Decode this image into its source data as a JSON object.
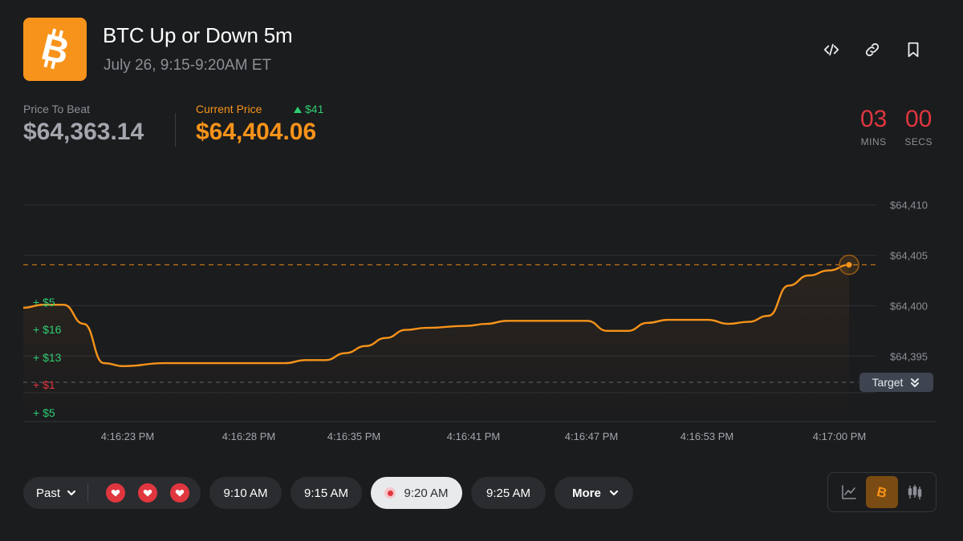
{
  "header": {
    "title": "BTC Up or Down 5m",
    "subtitle": "July 26, 9:15-9:20AM ET",
    "logo_icon": "bitcoin-icon",
    "brand_color": "#f7931a",
    "actions": [
      {
        "icon": "code-embed-icon"
      },
      {
        "icon": "link-icon"
      },
      {
        "icon": "bookmark-icon"
      }
    ]
  },
  "prices": {
    "beat_label": "Price To Beat",
    "beat_value": "$64,363.14",
    "current_label": "Current Price",
    "current_value": "$64,404.06",
    "delta": "$41",
    "delta_direction": "up",
    "up_color": "#2ecc71"
  },
  "timer": {
    "mins": "03",
    "mins_label": "MINS",
    "secs": "00",
    "secs_label": "SECS",
    "color": "#e0363f"
  },
  "target_badge": {
    "label": "Target"
  },
  "chart_data": {
    "type": "line",
    "x_ticks": [
      "4:16:23 PM",
      "4:16:28 PM",
      "4:16:35 PM",
      "4:16:41 PM",
      "4:16:47 PM",
      "4:16:53 PM",
      "4:17:00 PM"
    ],
    "y_ticks": [
      "$64,410",
      "$64,405",
      "$64,400",
      "$64,395"
    ],
    "y_ticks_values": [
      64410,
      64405,
      64400,
      64395
    ],
    "ylim": [
      64388.5,
      64413
    ],
    "current_price": 64404.06,
    "target_price": 64363.14,
    "line_color": "#f7931a",
    "grid": true,
    "trade_marks": [
      {
        "label": "+ $5",
        "side": "up"
      },
      {
        "label": "+ $16",
        "side": "up"
      },
      {
        "label": "+ $13",
        "side": "up"
      },
      {
        "label": "+ $1",
        "side": "down"
      },
      {
        "label": "+ $5",
        "side": "up"
      }
    ],
    "series": [
      {
        "x": [
          "4:16:19",
          "4:16:20",
          "4:16:21",
          "4:16:22",
          "4:16:23",
          "4:16:24",
          "4:16:26",
          "4:16:28",
          "4:16:30",
          "4:16:32",
          "4:16:33",
          "4:16:34",
          "4:16:35",
          "4:16:36",
          "4:16:37",
          "4:16:38",
          "4:16:39",
          "4:16:41",
          "4:16:42",
          "4:16:43",
          "4:16:44",
          "4:16:46",
          "4:16:47",
          "4:16:48",
          "4:16:49",
          "4:16:50",
          "4:16:51",
          "4:16:53",
          "4:16:54",
          "4:16:55",
          "4:16:56",
          "4:16:57",
          "4:16:58",
          "4:16:59",
          "4:17:00"
        ],
        "y": [
          64399.8,
          64400.1,
          64400.1,
          64398.2,
          64394.3,
          64394.0,
          64394.3,
          64394.3,
          64394.3,
          64394.3,
          64394.6,
          64394.6,
          64395.3,
          64396.0,
          64396.8,
          64397.6,
          64397.8,
          64398.0,
          64398.2,
          64398.5,
          64398.5,
          64398.5,
          64398.5,
          64397.5,
          64397.5,
          64398.3,
          64398.6,
          64398.6,
          64398.2,
          64398.4,
          64399.0,
          64402.0,
          64403.0,
          64403.5,
          64404.06
        ]
      }
    ]
  },
  "bottom_bar": {
    "past_label": "Past",
    "past_results": [
      "down",
      "down",
      "down"
    ],
    "times": [
      {
        "label": "9:10 AM",
        "active": false
      },
      {
        "label": "9:15 AM",
        "active": false
      },
      {
        "label": "9:20 AM",
        "active": true,
        "live": true
      },
      {
        "label": "9:25 AM",
        "active": false
      }
    ],
    "more_label": "More",
    "views": [
      {
        "icon": "line-chart-icon",
        "selected": false
      },
      {
        "icon": "bitcoin-icon",
        "selected": true
      },
      {
        "icon": "candlestick-icon",
        "selected": false
      }
    ]
  }
}
